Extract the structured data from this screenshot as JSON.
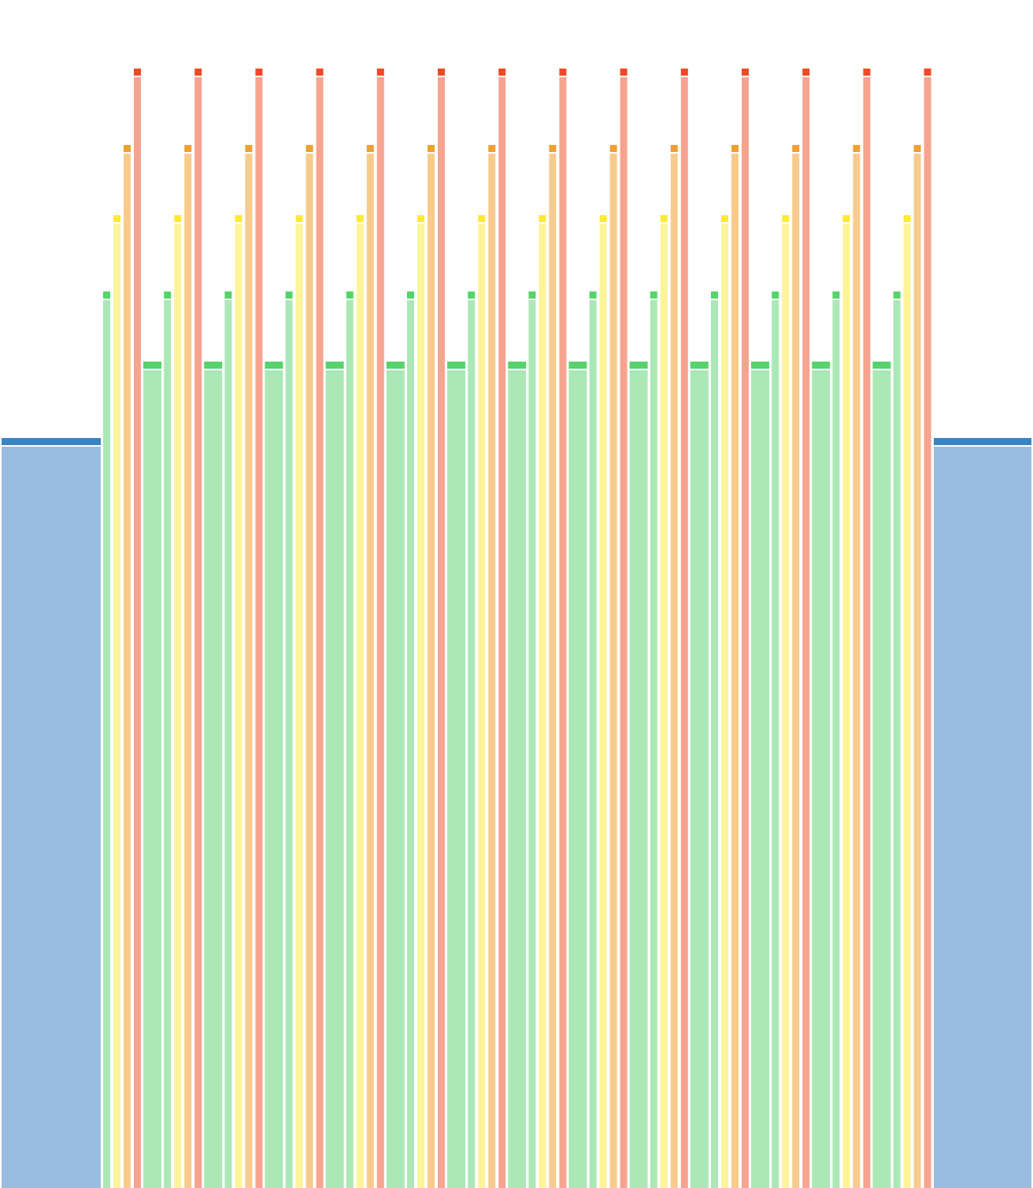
{
  "chart_data": {
    "type": "bar",
    "ylim": [
      0,
      1460
    ],
    "series": [
      {
        "color": "#3a84c4",
        "fill": "#99bde0",
        "values": [
          952,
          952
        ]
      },
      {
        "color": "#57d36b",
        "fill": "#abe8b6",
        "values": [
          1138,
          1138,
          1138,
          1138,
          1138,
          1138,
          1138,
          1138,
          1138,
          1138,
          1138,
          1138,
          1138,
          1138
        ]
      },
      {
        "color": "#fde93a",
        "fill": "#fdf49a",
        "values": [
          1235,
          1235,
          1235,
          1235,
          1235,
          1235,
          1235,
          1235,
          1235,
          1235,
          1235,
          1235,
          1235,
          1235
        ]
      },
      {
        "color": "#f0a030",
        "fill": "#f8cb8c",
        "values": [
          1324,
          1324,
          1324,
          1324,
          1324,
          1324,
          1324,
          1324,
          1324,
          1324,
          1324,
          1324,
          1324,
          1324
        ]
      },
      {
        "color": "#ee4a26",
        "fill": "#f6a490",
        "values": [
          1421,
          1421,
          1421,
          1421,
          1421,
          1421,
          1421,
          1421,
          1421,
          1421,
          1421,
          1421,
          1421,
          1421
        ]
      },
      {
        "color": "#57d36b",
        "fill": "#abe8b6",
        "values": [
          1049,
          1049,
          1049,
          1049,
          1049,
          1049,
          1049,
          1049,
          1049,
          1049,
          1049,
          1049,
          1049
        ]
      }
    ]
  }
}
